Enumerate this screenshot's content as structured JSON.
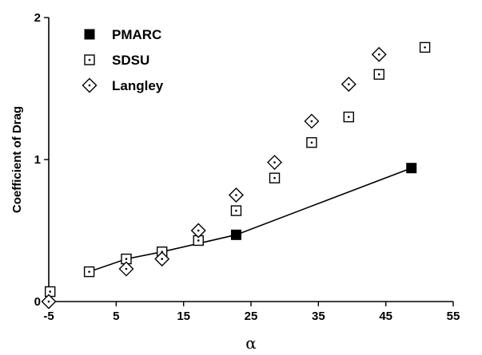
{
  "chart_data": {
    "type": "scatter",
    "xlabel": "α",
    "ylabel": "Coefficient of Drag",
    "xlim": [
      -5,
      55
    ],
    "ylim": [
      0,
      2
    ],
    "xticks": [
      -5,
      5,
      15,
      25,
      35,
      45,
      55
    ],
    "yticks": [
      0,
      1,
      2
    ],
    "grid": false,
    "legend_position": "top-left",
    "series": [
      {
        "name": "PMARC",
        "marker": "filled-square",
        "line": true,
        "x": [
          22.8,
          48.8
        ],
        "y": [
          0.47,
          0.94
        ]
      },
      {
        "name": "SDSU",
        "marker": "dotted-square",
        "line": false,
        "x": [
          -4.8,
          1.0,
          6.5,
          11.8,
          17.2,
          22.8,
          28.5,
          34.0,
          39.5,
          44.0,
          50.8
        ],
        "y": [
          0.07,
          0.21,
          0.3,
          0.35,
          0.43,
          0.64,
          0.87,
          1.12,
          1.3,
          1.6,
          1.79
        ]
      },
      {
        "name": "Langley",
        "marker": "dotted-diamond",
        "line": false,
        "x": [
          -5.0,
          6.5,
          11.8,
          17.2,
          22.8,
          28.5,
          34.0,
          39.5,
          44.0
        ],
        "y": [
          0.0,
          0.23,
          0.3,
          0.5,
          0.75,
          0.98,
          1.27,
          1.53,
          1.74
        ]
      }
    ]
  }
}
